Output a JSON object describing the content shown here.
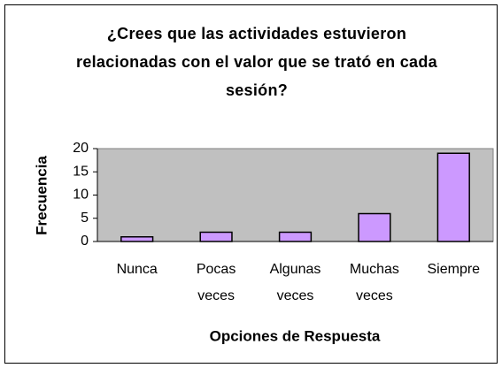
{
  "chart_data": {
    "type": "bar",
    "title": "¿Crees que las actividades estuvieron relacionadas con el valor que se trató en cada sesión?",
    "x_label": "Opciones de Respuesta",
    "y_label": "Frecuencia",
    "categories": [
      "Nunca",
      "Pocas veces",
      "Algunas veces",
      "Muchas veces",
      "Siempre"
    ],
    "values": [
      1,
      2,
      2,
      6,
      19
    ],
    "color": "#cc99ff",
    "ylim": [
      0,
      20
    ],
    "yticks": [
      0,
      5,
      10,
      15,
      20
    ],
    "grid": false
  }
}
